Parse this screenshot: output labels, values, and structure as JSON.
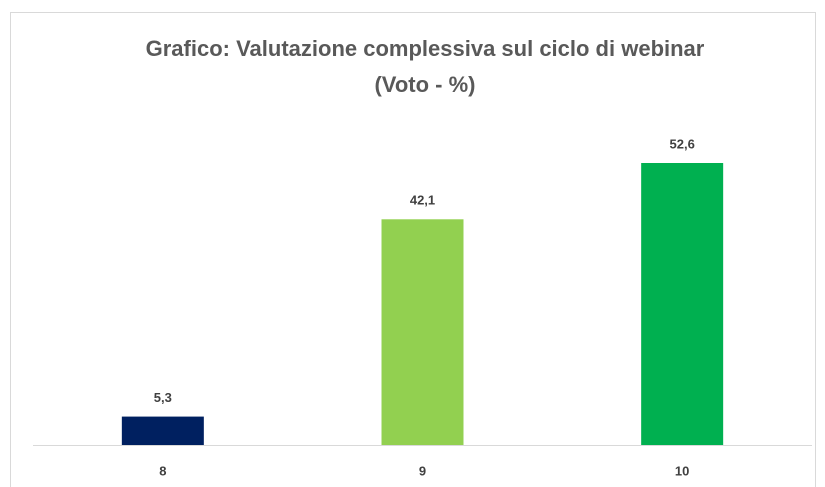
{
  "chart_data": {
    "type": "bar",
    "title": [
      "Grafico: Valutazione complessiva sul ciclo di webinar",
      "(Voto - %)"
    ],
    "categories": [
      "8",
      "9",
      "10"
    ],
    "values": [
      5.3,
      42.1,
      52.6
    ],
    "value_labels": [
      "5,3",
      "42,1",
      "52,6"
    ],
    "colors": [
      "#002060",
      "#92d050",
      "#00b050"
    ]
  }
}
